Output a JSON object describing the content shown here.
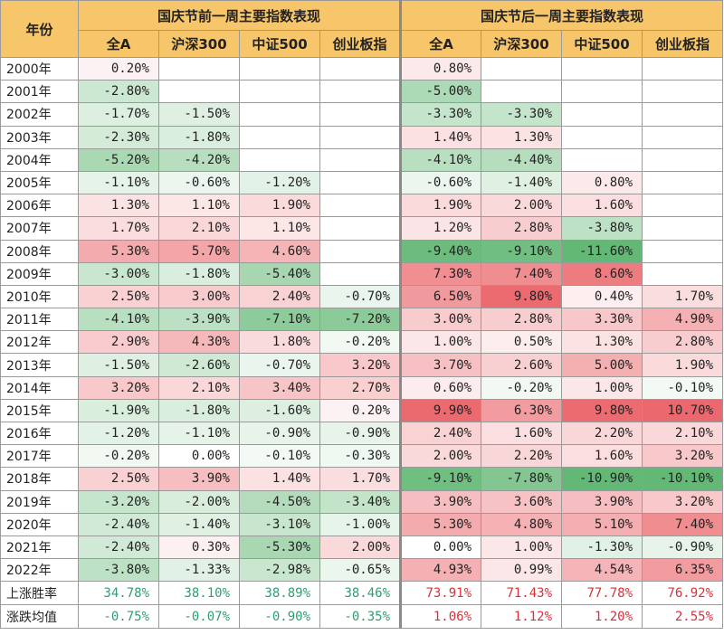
{
  "chart_data": {
    "type": "table",
    "header": {
      "year_label": "年份",
      "group_before": "国庆节前一周主要指数表现",
      "group_after": "国庆节后一周主要指数表现",
      "index_labels": [
        "全A",
        "沪深300",
        "中证500",
        "创业板指"
      ]
    },
    "rows": [
      {
        "year": "2000年",
        "before": [
          "0.20%",
          null,
          null,
          null
        ],
        "after": [
          "0.80%",
          null,
          null,
          null
        ]
      },
      {
        "year": "2001年",
        "before": [
          "-2.80%",
          null,
          null,
          null
        ],
        "after": [
          "-5.00%",
          null,
          null,
          null
        ]
      },
      {
        "year": "2002年",
        "before": [
          "-1.70%",
          "-1.50%",
          null,
          null
        ],
        "after": [
          "-3.30%",
          "-3.30%",
          null,
          null
        ]
      },
      {
        "year": "2003年",
        "before": [
          "-2.30%",
          "-1.80%",
          null,
          null
        ],
        "after": [
          "1.40%",
          "1.30%",
          null,
          null
        ]
      },
      {
        "year": "2004年",
        "before": [
          "-5.20%",
          "-4.20%",
          null,
          null
        ],
        "after": [
          "-4.10%",
          "-4.40%",
          null,
          null
        ]
      },
      {
        "year": "2005年",
        "before": [
          "-1.10%",
          "-0.60%",
          "-1.20%",
          null
        ],
        "after": [
          "-0.60%",
          "-1.40%",
          "0.80%",
          null
        ]
      },
      {
        "year": "2006年",
        "before": [
          "1.30%",
          "1.10%",
          "1.90%",
          null
        ],
        "after": [
          "1.90%",
          "2.00%",
          "1.60%",
          null
        ]
      },
      {
        "year": "2007年",
        "before": [
          "1.70%",
          "2.10%",
          "1.10%",
          null
        ],
        "after": [
          "1.20%",
          "2.80%",
          "-3.80%",
          null
        ]
      },
      {
        "year": "2008年",
        "before": [
          "5.30%",
          "5.70%",
          "4.60%",
          null
        ],
        "after": [
          "-9.40%",
          "-9.10%",
          "-11.60%",
          null
        ]
      },
      {
        "year": "2009年",
        "before": [
          "-3.00%",
          "-1.80%",
          "-5.40%",
          null
        ],
        "after": [
          "7.30%",
          "7.40%",
          "8.60%",
          null
        ]
      },
      {
        "year": "2010年",
        "before": [
          "2.50%",
          "3.00%",
          "2.40%",
          "-0.70%"
        ],
        "after": [
          "6.50%",
          "9.80%",
          "0.40%",
          "1.70%"
        ]
      },
      {
        "year": "2011年",
        "before": [
          "-4.10%",
          "-3.90%",
          "-7.10%",
          "-7.20%"
        ],
        "after": [
          "3.00%",
          "2.80%",
          "3.30%",
          "4.90%"
        ]
      },
      {
        "year": "2012年",
        "before": [
          "2.90%",
          "4.30%",
          "1.80%",
          "-0.20%"
        ],
        "after": [
          "1.00%",
          "0.50%",
          "1.30%",
          "2.80%"
        ]
      },
      {
        "year": "2013年",
        "before": [
          "-1.50%",
          "-2.60%",
          "-0.70%",
          "3.20%"
        ],
        "after": [
          "3.70%",
          "2.60%",
          "5.00%",
          "1.90%"
        ]
      },
      {
        "year": "2014年",
        "before": [
          "3.20%",
          "2.10%",
          "3.40%",
          "2.70%"
        ],
        "after": [
          "0.60%",
          "-0.20%",
          "1.00%",
          "-0.10%"
        ]
      },
      {
        "year": "2015年",
        "before": [
          "-1.90%",
          "-1.80%",
          "-1.60%",
          "0.20%"
        ],
        "after": [
          "9.90%",
          "6.30%",
          "9.80%",
          "10.70%"
        ]
      },
      {
        "year": "2016年",
        "before": [
          "-1.20%",
          "-1.10%",
          "-0.90%",
          "-0.90%"
        ],
        "after": [
          "2.40%",
          "1.60%",
          "2.20%",
          "2.10%"
        ]
      },
      {
        "year": "2017年",
        "before": [
          "-0.20%",
          "0.00%",
          "-0.10%",
          "-0.30%"
        ],
        "after": [
          "2.00%",
          "2.20%",
          "1.60%",
          "3.20%"
        ]
      },
      {
        "year": "2018年",
        "before": [
          "2.50%",
          "3.90%",
          "1.40%",
          "1.70%"
        ],
        "after": [
          "-9.10%",
          "-7.80%",
          "-10.90%",
          "-10.10%"
        ]
      },
      {
        "year": "2019年",
        "before": [
          "-3.20%",
          "-2.00%",
          "-4.50%",
          "-3.40%"
        ],
        "after": [
          "3.90%",
          "3.60%",
          "3.90%",
          "3.20%"
        ]
      },
      {
        "year": "2020年",
        "before": [
          "-2.40%",
          "-1.40%",
          "-3.10%",
          "-1.00%"
        ],
        "after": [
          "5.30%",
          "4.80%",
          "5.10%",
          "7.40%"
        ]
      },
      {
        "year": "2021年",
        "before": [
          "-2.40%",
          "0.30%",
          "-5.30%",
          "2.00%"
        ],
        "after": [
          "0.00%",
          "1.00%",
          "-1.30%",
          "-0.90%"
        ]
      },
      {
        "year": "2022年",
        "before": [
          "-3.80%",
          "-1.33%",
          "-2.98%",
          "-0.65%"
        ],
        "after": [
          "4.93%",
          "0.99%",
          "4.54%",
          "6.35%"
        ]
      }
    ],
    "summary": [
      {
        "label": "上涨胜率",
        "before": [
          "34.78%",
          "38.10%",
          "38.89%",
          "38.46%"
        ],
        "after": [
          "73.91%",
          "71.43%",
          "77.78%",
          "76.92%"
        ]
      },
      {
        "label": "涨跌均值",
        "before": [
          "-0.75%",
          "-0.07%",
          "-0.90%",
          "-0.35%"
        ],
        "after": [
          "1.06%",
          "1.12%",
          "1.20%",
          "2.55%"
        ]
      }
    ]
  },
  "colors": {
    "header": "#f7c66a",
    "positive": "#e8545a",
    "negative": "#4fae63",
    "summary_before_text": "#2f9e6e",
    "summary_after_text": "#d7323b"
  }
}
